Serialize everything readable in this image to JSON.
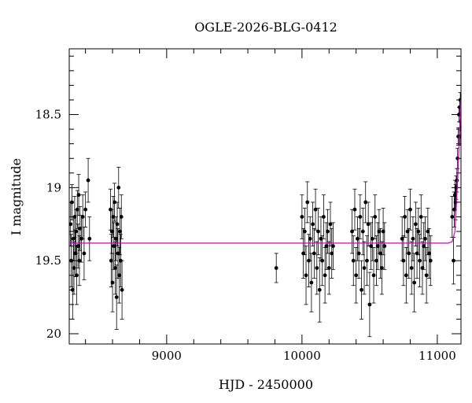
{
  "chart_data": {
    "type": "scatter",
    "title": "OGLE-2026-BLG-0412",
    "xlabel": "HJD - 2450000",
    "ylabel": "I magnitude",
    "xlim": [
      8280,
      11175
    ],
    "ylim": [
      20.07,
      18.05
    ],
    "y_inverted": true,
    "x_ticks_labeled": [
      9000,
      10000,
      11000
    ],
    "y_ticks_labeled": [
      18.5,
      19,
      19.5,
      20
    ],
    "y_tick_labels": [
      "18.5",
      "19",
      "19.5",
      "20"
    ],
    "grid": false,
    "colors": {
      "points": "#000000",
      "model": "#cc00cc"
    },
    "model": {
      "baseline_mag": 19.38,
      "peak_hjd": 11200,
      "points": [
        [
          8280,
          19.38
        ],
        [
          11080,
          19.38
        ],
        [
          11110,
          19.37
        ],
        [
          11130,
          19.3
        ],
        [
          11145,
          19.05
        ],
        [
          11155,
          18.85
        ],
        [
          11165,
          18.6
        ],
        [
          11175,
          18.4
        ]
      ]
    },
    "series": [
      {
        "points": [
          [
            8290,
            19.25,
            0.15
          ],
          [
            8295,
            19.5,
            0.18
          ],
          [
            8300,
            19.1,
            0.12
          ],
          [
            8305,
            19.7,
            0.2
          ],
          [
            8310,
            19.35,
            0.15
          ],
          [
            8315,
            19.55,
            0.18
          ],
          [
            8320,
            19.2,
            0.14
          ],
          [
            8325,
            19.45,
            0.16
          ],
          [
            8330,
            19.3,
            0.15
          ],
          [
            8335,
            19.6,
            0.2
          ],
          [
            8340,
            19.15,
            0.13
          ],
          [
            8345,
            19.4,
            0.15
          ],
          [
            8350,
            19.05,
            0.14
          ],
          [
            8355,
            19.5,
            0.17
          ],
          [
            8360,
            19.28,
            0.15
          ],
          [
            8370,
            19.35,
            0.16
          ],
          [
            8380,
            19.2,
            0.15
          ],
          [
            8390,
            19.45,
            0.18
          ],
          [
            8400,
            19.15,
            0.12
          ],
          [
            8420,
            18.95,
            0.15
          ],
          [
            8430,
            19.35,
            0.15
          ],
          [
            8585,
            19.15,
            0.14
          ],
          [
            8590,
            19.5,
            0.18
          ],
          [
            8595,
            19.3,
            0.15
          ],
          [
            8600,
            19.65,
            0.2
          ],
          [
            8605,
            19.2,
            0.14
          ],
          [
            8610,
            19.4,
            0.16
          ],
          [
            8615,
            19.1,
            0.13
          ],
          [
            8620,
            19.55,
            0.18
          ],
          [
            8625,
            19.35,
            0.15
          ],
          [
            8630,
            19.75,
            0.22
          ],
          [
            8635,
            19.25,
            0.15
          ],
          [
            8640,
            19.45,
            0.17
          ],
          [
            8645,
            19.0,
            0.14
          ],
          [
            8650,
            19.6,
            0.19
          ],
          [
            8655,
            19.3,
            0.16
          ],
          [
            8660,
            19.5,
            0.18
          ],
          [
            8665,
            19.2,
            0.15
          ],
          [
            8670,
            19.7,
            0.2
          ],
          [
            9810,
            19.55,
            0.1
          ],
          [
            10000,
            19.2,
            0.15
          ],
          [
            10010,
            19.45,
            0.17
          ],
          [
            10020,
            19.3,
            0.16
          ],
          [
            10030,
            19.6,
            0.2
          ],
          [
            10040,
            19.1,
            0.14
          ],
          [
            10050,
            19.5,
            0.18
          ],
          [
            10060,
            19.35,
            0.15
          ],
          [
            10070,
            19.65,
            0.2
          ],
          [
            10080,
            19.25,
            0.15
          ],
          [
            10090,
            19.45,
            0.17
          ],
          [
            10100,
            19.15,
            0.14
          ],
          [
            10110,
            19.55,
            0.18
          ],
          [
            10120,
            19.3,
            0.16
          ],
          [
            10130,
            19.7,
            0.22
          ],
          [
            10140,
            19.35,
            0.15
          ],
          [
            10150,
            19.5,
            0.17
          ],
          [
            10160,
            19.2,
            0.15
          ],
          [
            10170,
            19.6,
            0.19
          ],
          [
            10180,
            19.4,
            0.16
          ],
          [
            10190,
            19.3,
            0.15
          ],
          [
            10200,
            19.55,
            0.18
          ],
          [
            10210,
            19.25,
            0.15
          ],
          [
            10220,
            19.45,
            0.17
          ],
          [
            10230,
            19.4,
            0.16
          ],
          [
            10370,
            19.3,
            0.15
          ],
          [
            10380,
            19.5,
            0.17
          ],
          [
            10390,
            19.15,
            0.14
          ],
          [
            10400,
            19.6,
            0.19
          ],
          [
            10410,
            19.35,
            0.15
          ],
          [
            10420,
            19.45,
            0.17
          ],
          [
            10430,
            19.2,
            0.15
          ],
          [
            10440,
            19.7,
            0.2
          ],
          [
            10450,
            19.3,
            0.16
          ],
          [
            10460,
            19.55,
            0.18
          ],
          [
            10470,
            19.1,
            0.14
          ],
          [
            10480,
            19.5,
            0.17
          ],
          [
            10490,
            19.25,
            0.15
          ],
          [
            10500,
            19.8,
            0.22
          ],
          [
            10510,
            19.4,
            0.16
          ],
          [
            10520,
            19.35,
            0.15
          ],
          [
            10530,
            19.6,
            0.19
          ],
          [
            10540,
            19.2,
            0.15
          ],
          [
            10550,
            19.5,
            0.17
          ],
          [
            10560,
            19.4,
            0.16
          ],
          [
            10570,
            19.3,
            0.15
          ],
          [
            10580,
            19.45,
            0.17
          ],
          [
            10590,
            19.55,
            0.18
          ],
          [
            10600,
            19.3,
            0.16
          ],
          [
            10610,
            19.4,
            0.16
          ],
          [
            10740,
            19.35,
            0.15
          ],
          [
            10750,
            19.5,
            0.17
          ],
          [
            10760,
            19.2,
            0.14
          ],
          [
            10770,
            19.6,
            0.19
          ],
          [
            10780,
            19.3,
            0.15
          ],
          [
            10790,
            19.45,
            0.17
          ],
          [
            10800,
            19.15,
            0.14
          ],
          [
            10810,
            19.55,
            0.18
          ],
          [
            10820,
            19.35,
            0.15
          ],
          [
            10830,
            19.65,
            0.2
          ],
          [
            10840,
            19.25,
            0.15
          ],
          [
            10850,
            19.45,
            0.17
          ],
          [
            10860,
            19.3,
            0.16
          ],
          [
            10870,
            19.5,
            0.18
          ],
          [
            10880,
            19.2,
            0.15
          ],
          [
            10890,
            19.55,
            0.18
          ],
          [
            10900,
            19.4,
            0.16
          ],
          [
            10910,
            19.35,
            0.15
          ],
          [
            10920,
            19.6,
            0.19
          ],
          [
            10930,
            19.3,
            0.16
          ],
          [
            10940,
            19.45,
            0.17
          ],
          [
            10950,
            19.5,
            0.17
          ],
          [
            11110,
            19.2,
            0.14
          ],
          [
            11120,
            19.5,
            0.16
          ],
          [
            11125,
            19.15,
            0.12
          ],
          [
            11130,
            19.05,
            0.1
          ],
          [
            11135,
            19.1,
            0.12
          ],
          [
            11140,
            19.0,
            0.08
          ],
          [
            11145,
            18.95,
            0.08
          ],
          [
            11150,
            18.8,
            0.07
          ],
          [
            11155,
            18.65,
            0.06
          ],
          [
            11160,
            18.5,
            0.05
          ],
          [
            11165,
            18.45,
            0.05
          ],
          [
            11170,
            18.4,
            0.05
          ],
          [
            11172,
            18.55,
            0.06
          ],
          [
            11168,
            18.65,
            0.06
          ]
        ]
      }
    ]
  }
}
